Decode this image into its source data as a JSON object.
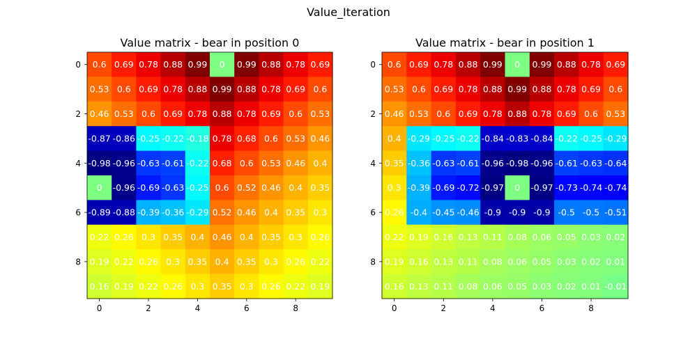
{
  "figure": {
    "suptitle": "Value_Iteration"
  },
  "chart_data": [
    {
      "type": "heatmap",
      "title": "Value matrix - bear in position 0",
      "colormap": "jet",
      "xticks": [
        0,
        2,
        4,
        6,
        8
      ],
      "yticks": [
        0,
        2,
        4,
        6,
        8
      ],
      "grid": false,
      "values": [
        [
          0.6,
          0.69,
          0.78,
          0.88,
          0.99,
          0.0,
          0.99,
          0.88,
          0.78,
          0.69
        ],
        [
          0.53,
          0.6,
          0.69,
          0.78,
          0.88,
          0.99,
          0.88,
          0.78,
          0.69,
          0.6
        ],
        [
          0.46,
          0.53,
          0.6,
          0.69,
          0.78,
          0.88,
          0.78,
          0.69,
          0.6,
          0.53
        ],
        [
          -0.87,
          -0.86,
          -0.25,
          -0.22,
          -0.18,
          0.78,
          0.68,
          0.6,
          0.53,
          0.46
        ],
        [
          -0.98,
          -0.96,
          -0.63,
          -0.61,
          -0.22,
          0.68,
          0.6,
          0.53,
          0.46,
          0.4
        ],
        [
          0.0,
          -0.96,
          -0.69,
          -0.63,
          -0.25,
          0.6,
          0.52,
          0.46,
          0.4,
          0.35
        ],
        [
          -0.89,
          -0.88,
          -0.39,
          -0.36,
          -0.29,
          0.52,
          0.46,
          0.4,
          0.35,
          0.3
        ],
        [
          0.22,
          0.26,
          0.3,
          0.35,
          0.4,
          0.46,
          0.4,
          0.35,
          0.3,
          0.26
        ],
        [
          0.19,
          0.22,
          0.26,
          0.3,
          0.35,
          0.4,
          0.35,
          0.3,
          0.26,
          0.22
        ],
        [
          0.16,
          0.19,
          0.22,
          0.26,
          0.3,
          0.35,
          0.3,
          0.26,
          0.22,
          0.19
        ]
      ]
    },
    {
      "type": "heatmap",
      "title": "Value matrix - bear in position 1",
      "colormap": "jet",
      "xticks": [
        0,
        2,
        4,
        6,
        8
      ],
      "yticks": [
        0,
        2,
        4,
        6,
        8
      ],
      "grid": false,
      "values": [
        [
          0.6,
          0.69,
          0.78,
          0.88,
          0.99,
          0.0,
          0.99,
          0.88,
          0.78,
          0.69
        ],
        [
          0.53,
          0.6,
          0.69,
          0.78,
          0.88,
          0.99,
          0.88,
          0.78,
          0.69,
          0.6
        ],
        [
          0.46,
          0.53,
          0.6,
          0.69,
          0.78,
          0.88,
          0.78,
          0.69,
          0.6,
          0.53
        ],
        [
          0.4,
          -0.29,
          -0.25,
          -0.22,
          -0.84,
          -0.83,
          -0.84,
          -0.22,
          -0.25,
          -0.29
        ],
        [
          0.35,
          -0.36,
          -0.63,
          -0.61,
          -0.96,
          -0.98,
          -0.96,
          -0.61,
          -0.63,
          -0.64
        ],
        [
          0.3,
          -0.39,
          -0.69,
          -0.72,
          -0.97,
          0.0,
          -0.97,
          -0.73,
          -0.74,
          -0.74
        ],
        [
          0.26,
          -0.4,
          -0.45,
          -0.46,
          -0.9,
          -0.9,
          -0.9,
          -0.5,
          -0.5,
          -0.51
        ],
        [
          0.22,
          0.19,
          0.16,
          0.13,
          0.11,
          0.08,
          0.06,
          0.05,
          0.03,
          0.02
        ],
        [
          0.19,
          0.16,
          0.13,
          0.11,
          0.08,
          0.06,
          0.05,
          0.03,
          0.02,
          0.01
        ],
        [
          0.16,
          0.13,
          0.11,
          0.08,
          0.06,
          0.05,
          0.03,
          0.02,
          0.01,
          -0.01
        ]
      ]
    }
  ]
}
